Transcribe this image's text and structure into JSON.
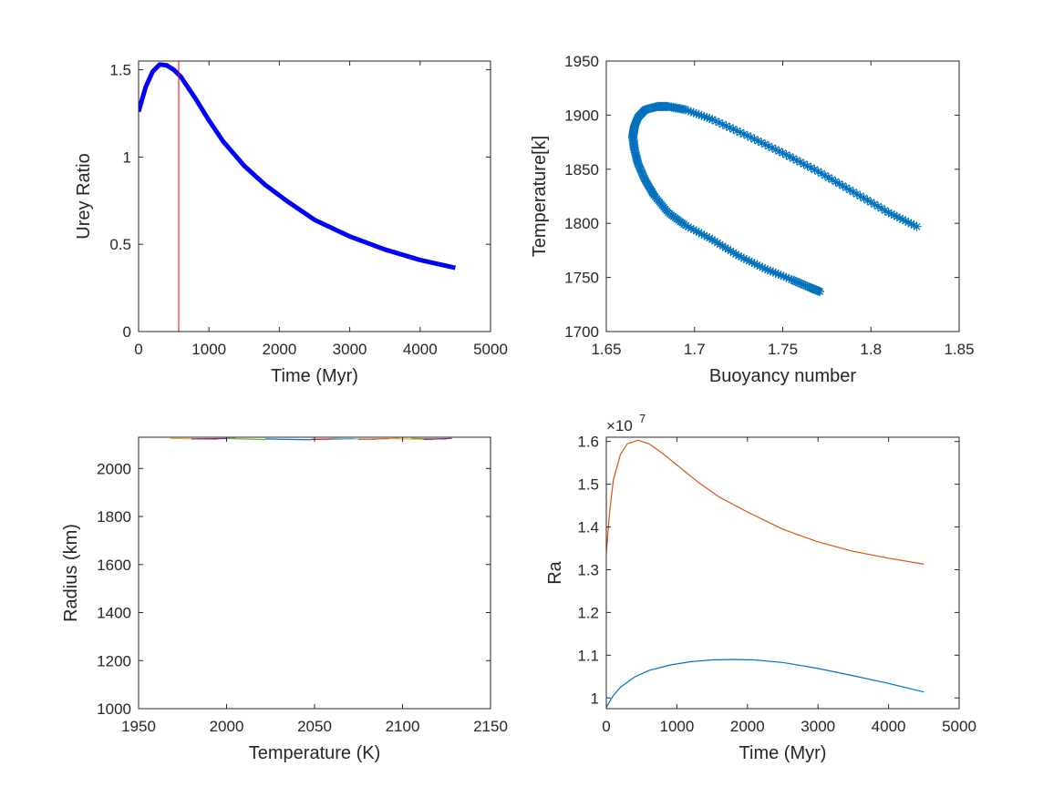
{
  "colors": {
    "matlab_blue": "#0072BD",
    "matlab_orange": "#D95319",
    "matlab_yellow": "#EDB120",
    "matlab_purple": "#7E2F8E",
    "matlab_green": "#77AC30",
    "matlab_cyan": "#4DBEEE",
    "matlab_red": "#A2142F",
    "pure_blue": "#0000FF",
    "pure_red": "#FF0000",
    "axes": "#262626"
  },
  "chart_data": [
    {
      "type": "line",
      "xlabel": "Time (Myr)",
      "ylabel": "Urey Ratio",
      "xlim": [
        0,
        5000
      ],
      "ylim": [
        0,
        1.55
      ],
      "xticks": [
        "0",
        "1000",
        "2000",
        "3000",
        "4000",
        "5000"
      ],
      "yticks": [
        "0",
        "0.5",
        "1",
        "1.5"
      ],
      "series": [
        {
          "color": "#0000FF",
          "style": "thick-line",
          "x": [
            0,
            100,
            200,
            300,
            400,
            500,
            600,
            800,
            1000,
            1200,
            1500,
            1800,
            2100,
            2500,
            3000,
            3500,
            4000,
            4500
          ],
          "y": [
            1.26,
            1.4,
            1.49,
            1.53,
            1.525,
            1.5,
            1.46,
            1.34,
            1.21,
            1.09,
            0.95,
            0.84,
            0.75,
            0.64,
            0.545,
            0.47,
            0.41,
            0.365
          ]
        }
      ],
      "vlines": [
        {
          "x": 570,
          "color": "#FF0000"
        }
      ]
    },
    {
      "type": "scatter",
      "xlabel": "Buoyancy number",
      "ylabel": "Temperature[k]",
      "xlim": [
        1.65,
        1.85
      ],
      "ylim": [
        1700,
        1950
      ],
      "xticks": [
        "1.65",
        "1.7",
        "1.75",
        "1.8",
        "1.85"
      ],
      "yticks": [
        "1700",
        "1750",
        "1800",
        "1850",
        "1900",
        "1950"
      ],
      "series": [
        {
          "color": "#0072BD",
          "marker": "*",
          "x": [
            1.826,
            1.81,
            1.79,
            1.77,
            1.75,
            1.73,
            1.71,
            1.695,
            1.685,
            1.679,
            1.672,
            1.668,
            1.666,
            1.665,
            1.666,
            1.668,
            1.672,
            1.677,
            1.685,
            1.695,
            1.71,
            1.725,
            1.74,
            1.755,
            1.765,
            1.771
          ],
          "y": [
            1797,
            1810,
            1829,
            1848,
            1865,
            1881,
            1896,
            1905,
            1908,
            1908,
            1905,
            1898,
            1890,
            1880,
            1868,
            1855,
            1840,
            1826,
            1810,
            1798,
            1785,
            1770,
            1758,
            1748,
            1741,
            1737
          ]
        }
      ]
    },
    {
      "type": "line",
      "xlabel": "Temperature (K)",
      "ylabel": "Radius (km)",
      "xlim": [
        1950,
        2150
      ],
      "ylim": [
        1000,
        2130
      ],
      "xticks": [
        "1950",
        "2000",
        "2050",
        "2100",
        "2150"
      ],
      "yticks": [
        "1000",
        "1200",
        "1400",
        "1600",
        "1800",
        "2000"
      ],
      "series": [
        {
          "color": "#EDB120",
          "x": [
            1968,
            1995
          ],
          "y": [
            2125,
            2121
          ]
        },
        {
          "color": "#7E2F8E",
          "x": [
            1980,
            2005
          ],
          "y": [
            2123,
            2125
          ]
        },
        {
          "color": "#77AC30",
          "x": [
            2000,
            2022
          ],
          "y": [
            2125,
            2120
          ]
        },
        {
          "color": "#0072BD",
          "x": [
            2022,
            2048
          ],
          "y": [
            2123,
            2119
          ]
        },
        {
          "color": "#A2142F",
          "x": [
            2048,
            2072
          ],
          "y": [
            2121,
            2124
          ]
        },
        {
          "color": "#4DBEEE",
          "x": [
            2060,
            2085
          ],
          "y": [
            2125,
            2121
          ]
        },
        {
          "color": "#D95319",
          "x": [
            2075,
            2098
          ],
          "y": [
            2121,
            2125
          ]
        },
        {
          "color": "#EDB120",
          "x": [
            2092,
            2118
          ],
          "y": [
            2124,
            2120
          ]
        },
        {
          "color": "#77AC30",
          "x": [
            2105,
            2125
          ],
          "y": [
            2125,
            2122
          ]
        },
        {
          "color": "#7E2F8E",
          "x": [
            2112,
            2128
          ],
          "y": [
            2121,
            2125
          ]
        }
      ]
    },
    {
      "type": "line",
      "xlabel": "Time (Myr)",
      "ylabel": "Ra",
      "exponent_label": "×10",
      "exponent_power": "7",
      "xlim": [
        0,
        5000
      ],
      "ylim": [
        0.975,
        1.61
      ],
      "xticks": [
        "0",
        "1000",
        "2000",
        "3000",
        "4000",
        "5000"
      ],
      "yticks": [
        "1",
        "1.1",
        "1.2",
        "1.3",
        "1.4",
        "1.5",
        "1.6"
      ],
      "series": [
        {
          "color": "#D95319",
          "x": [
            0,
            50,
            100,
            200,
            300,
            450,
            600,
            800,
            1000,
            1300,
            1600,
            2000,
            2500,
            3000,
            3500,
            4000,
            4500
          ],
          "y": [
            1.34,
            1.44,
            1.51,
            1.57,
            1.595,
            1.603,
            1.595,
            1.572,
            1.545,
            1.505,
            1.47,
            1.435,
            1.395,
            1.365,
            1.343,
            1.327,
            1.313
          ]
        },
        {
          "color": "#0072BD",
          "x": [
            0,
            100,
            200,
            400,
            600,
            900,
            1200,
            1500,
            1800,
            2100,
            2500,
            3000,
            3500,
            4000,
            4500
          ],
          "y": [
            0.978,
            1.006,
            1.025,
            1.049,
            1.064,
            1.077,
            1.085,
            1.089,
            1.09,
            1.089,
            1.083,
            1.069,
            1.052,
            1.034,
            1.014
          ]
        }
      ]
    }
  ]
}
